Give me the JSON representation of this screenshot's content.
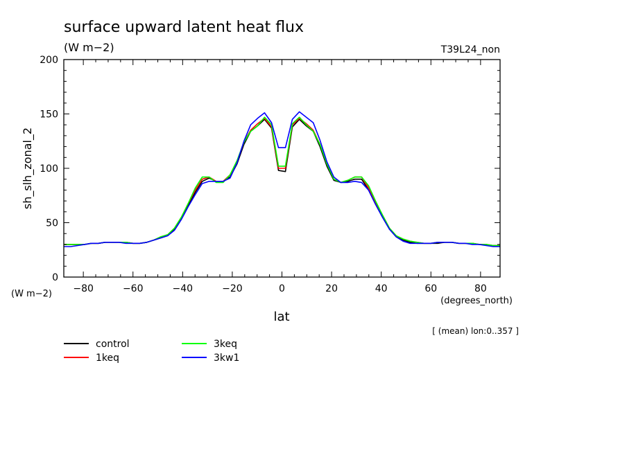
{
  "chart_data": {
    "type": "line",
    "title": "surface upward latent heat flux",
    "subtitle": "(W m−2)",
    "run_label": "T39L24_non",
    "xlabel": "lat",
    "x_units": "(degrees_north)",
    "ylabel": "sh_slh_zonal_2",
    "y_units": "(W m−2)",
    "note": "[ (mean) lon:0..357 ]",
    "xlim": [
      -87.86,
      87.86
    ],
    "ylim": [
      0,
      200
    ],
    "x_ticks": [
      -80,
      -60,
      -40,
      -20,
      0,
      20,
      40,
      60,
      80
    ],
    "y_ticks": [
      0,
      50,
      100,
      150,
      200
    ],
    "grid": false,
    "legend_position": "bottom-left",
    "x": [
      -87.86,
      -85.1,
      -82.3,
      -79.5,
      -76.7,
      -73.9,
      -71.2,
      -68.4,
      -65.6,
      -62.8,
      -60.0,
      -57.2,
      -54.4,
      -51.6,
      -48.8,
      -46.0,
      -43.3,
      -40.5,
      -37.7,
      -34.9,
      -32.1,
      -29.3,
      -26.5,
      -23.7,
      -20.9,
      -18.1,
      -15.3,
      -12.6,
      -9.8,
      -7.0,
      -4.2,
      -1.4,
      1.4,
      4.2,
      7.0,
      9.8,
      12.6,
      15.3,
      18.1,
      20.9,
      23.7,
      26.5,
      29.3,
      32.1,
      34.9,
      37.7,
      40.5,
      43.3,
      46.0,
      48.8,
      51.6,
      54.4,
      57.2,
      60.0,
      62.8,
      65.6,
      68.4,
      71.2,
      73.9,
      76.7,
      79.5,
      82.3,
      85.1,
      87.86
    ],
    "series": [
      {
        "name": "control",
        "color": "#000000",
        "values": [
          30,
          30,
          30,
          30,
          31,
          31,
          32,
          32,
          32,
          32,
          31,
          31,
          32,
          34,
          36,
          38,
          44,
          54,
          66,
          78,
          88,
          91,
          88,
          88,
          92,
          104,
          122,
          134,
          139,
          145,
          137,
          98,
          97,
          138,
          145,
          139,
          134,
          120,
          102,
          89,
          87,
          88,
          90,
          90,
          80,
          67,
          55,
          44,
          37,
          34,
          32,
          31,
          31,
          31,
          31,
          32,
          32,
          31,
          31,
          31,
          30,
          30,
          29,
          29
        ]
      },
      {
        "name": "1keq",
        "color": "#ff0000",
        "values": [
          30,
          30,
          30,
          30,
          31,
          31,
          32,
          32,
          32,
          32,
          31,
          31,
          32,
          34,
          37,
          39,
          45,
          55,
          68,
          80,
          90,
          92,
          88,
          88,
          94,
          106,
          124,
          135,
          141,
          146,
          138,
          100,
          100,
          140,
          146,
          141,
          135,
          122,
          104,
          90,
          87,
          89,
          92,
          92,
          82,
          69,
          57,
          45,
          38,
          35,
          33,
          32,
          31,
          31,
          32,
          32,
          32,
          31,
          31,
          31,
          30,
          30,
          29,
          29
        ]
      },
      {
        "name": "3keq",
        "color": "#00ff00",
        "values": [
          30,
          30,
          30,
          30,
          31,
          31,
          32,
          32,
          32,
          32,
          31,
          31,
          32,
          34,
          37,
          39,
          45,
          55,
          68,
          82,
          92,
          92,
          87,
          87,
          94,
          107,
          124,
          134,
          139,
          147,
          140,
          102,
          102,
          141,
          147,
          140,
          134,
          122,
          104,
          90,
          87,
          89,
          92,
          92,
          84,
          70,
          57,
          45,
          38,
          35,
          33,
          32,
          31,
          31,
          32,
          32,
          32,
          31,
          31,
          31,
          30,
          30,
          29,
          29
        ]
      },
      {
        "name": "3kw1",
        "color": "#0000ff",
        "values": [
          28,
          28,
          29,
          30,
          31,
          31,
          32,
          32,
          32,
          31,
          31,
          31,
          32,
          34,
          36,
          38,
          43,
          53,
          65,
          76,
          86,
          88,
          88,
          88,
          91,
          105,
          125,
          140,
          146,
          151,
          142,
          119,
          119,
          145,
          152,
          147,
          142,
          126,
          106,
          92,
          87,
          87,
          88,
          87,
          80,
          67,
          55,
          44,
          37,
          33,
          31,
          31,
          31,
          31,
          32,
          32,
          32,
          31,
          31,
          30,
          30,
          29,
          28,
          28
        ]
      }
    ]
  }
}
